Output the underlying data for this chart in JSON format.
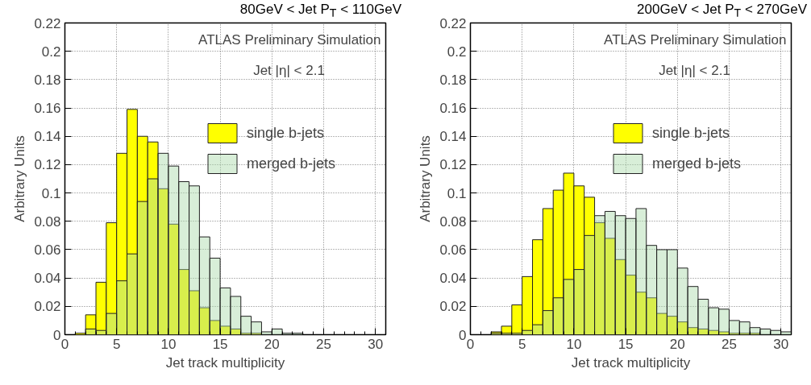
{
  "chart_data": [
    {
      "type": "histogram",
      "title": "80GeV < Jet P$_{T}$ < 110GeV",
      "xlabel": "Jet track multiplicity",
      "ylabel": "Arbitrary Units",
      "annotations": [
        "ATLAS Preliminary Simulation",
        "Jet |η| < 2.1"
      ],
      "bins": [
        0,
        1,
        2,
        3,
        4,
        5,
        6,
        7,
        8,
        9,
        10,
        11,
        12,
        13,
        14,
        15,
        16,
        17,
        18,
        19,
        20,
        21,
        22,
        23,
        24,
        25,
        26,
        27,
        28,
        29,
        30,
        31
      ],
      "series": [
        {
          "name": "single b-jets",
          "color": "#ffff00",
          "values": [
            0,
            0.001,
            0.014,
            0.037,
            0.079,
            0.128,
            0.159,
            0.14,
            0.136,
            0.103,
            0.078,
            0.046,
            0.031,
            0.019,
            0.01,
            0.006,
            0.004,
            0.001,
            0.001,
            0,
            0,
            0,
            0,
            0,
            0,
            0,
            0,
            0,
            0,
            0,
            0
          ]
        },
        {
          "name": "merged b-jets",
          "color": "#a9d9a9",
          "values": [
            0,
            0,
            0.004,
            0.003,
            0.015,
            0.038,
            0.057,
            0.094,
            0.11,
            0.128,
            0.119,
            0.108,
            0.105,
            0.069,
            0.054,
            0.033,
            0.027,
            0.013,
            0.009,
            0.002,
            0.004,
            0.001,
            0.001,
            0,
            0,
            0,
            0,
            0,
            0,
            0,
            0
          ]
        }
      ],
      "xlim": [
        0,
        31
      ],
      "ylim": [
        0,
        0.22
      ],
      "xticks": [
        0,
        5,
        10,
        15,
        20,
        25,
        30
      ],
      "yticks": [
        0,
        0.02,
        0.04,
        0.06,
        0.08,
        0.1,
        0.12,
        0.14,
        0.16,
        0.18,
        0.2,
        0.22
      ],
      "grid": true,
      "legend": "top right"
    },
    {
      "type": "histogram",
      "title": "200GeV < Jet P$_{T}$ < 270GeV",
      "xlabel": "Jet track multiplicity",
      "ylabel": "Arbitrary Units",
      "annotations": [
        "ATLAS Preliminary Simulation",
        "Jet |η| < 2.1"
      ],
      "bins": [
        0,
        1,
        2,
        3,
        4,
        5,
        6,
        7,
        8,
        9,
        10,
        11,
        12,
        13,
        14,
        15,
        16,
        17,
        18,
        19,
        20,
        21,
        22,
        23,
        24,
        25,
        26,
        27,
        28,
        29,
        30,
        31
      ],
      "series": [
        {
          "name": "single b-jets",
          "color": "#ffff00",
          "values": [
            0,
            0,
            0.002,
            0.006,
            0.021,
            0.041,
            0.067,
            0.089,
            0.102,
            0.114,
            0.105,
            0.097,
            0.079,
            0.068,
            0.053,
            0.042,
            0.03,
            0.026,
            0.015,
            0.013,
            0.009,
            0.005,
            0.004,
            0.003,
            0.002,
            0.001,
            0.001,
            0.001,
            0,
            0,
            0
          ]
        },
        {
          "name": "merged b-jets",
          "color": "#a9d9a9",
          "values": [
            0,
            0,
            0.001,
            0.001,
            0.001,
            0.003,
            0.007,
            0.017,
            0.026,
            0.039,
            0.046,
            0.07,
            0.084,
            0.087,
            0.084,
            0.082,
            0.089,
            0.063,
            0.06,
            0.06,
            0.047,
            0.034,
            0.025,
            0.019,
            0.018,
            0.01,
            0.009,
            0.005,
            0.004,
            0.003,
            0.002
          ]
        }
      ],
      "xlim": [
        0,
        31
      ],
      "ylim": [
        0,
        0.22
      ],
      "xticks": [
        0,
        5,
        10,
        15,
        20,
        25,
        30
      ],
      "yticks": [
        0,
        0.02,
        0.04,
        0.06,
        0.08,
        0.1,
        0.12,
        0.14,
        0.16,
        0.18,
        0.2,
        0.22
      ],
      "grid": true,
      "legend": "top right"
    }
  ]
}
